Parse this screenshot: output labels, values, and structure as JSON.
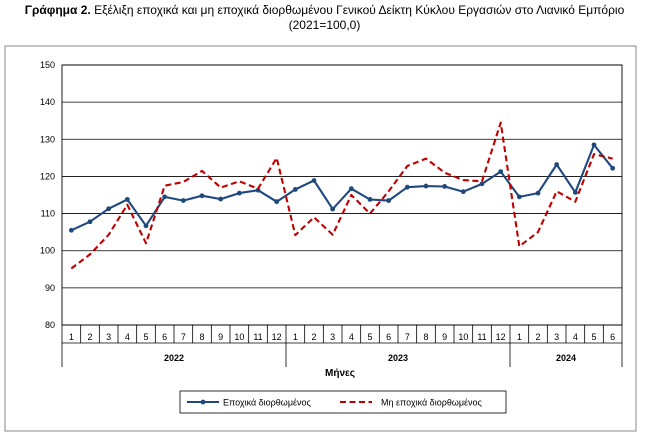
{
  "title": {
    "bold": "Γράφημα 2.",
    "line1": "Εξέλιξη εποχικά και μη εποχικά διορθωμένου Γενικού Δείκτη Κύκλου Εργασιών στο Λιανικό Εμπόριο",
    "line2": "(2021=100,0)"
  },
  "chart_data": {
    "type": "line",
    "x_tick_labels": [
      "1",
      "2",
      "3",
      "4",
      "5",
      "6",
      "7",
      "8",
      "9",
      "10",
      "11",
      "12",
      "1",
      "2",
      "3",
      "4",
      "5",
      "6",
      "7",
      "8",
      "9",
      "10",
      "11",
      "12",
      "1",
      "2",
      "3",
      "4",
      "5",
      "6"
    ],
    "years": [
      {
        "label": "2022",
        "count": 12
      },
      {
        "label": "2023",
        "count": 12
      },
      {
        "label": "2024",
        "count": 6
      }
    ],
    "xlabel": "Μήνες",
    "ylabel": "",
    "ylim": [
      80,
      150
    ],
    "yticks": [
      80,
      90,
      100,
      110,
      120,
      130,
      140,
      150
    ],
    "grid": true,
    "legend_position": "bottom",
    "series": [
      {
        "name": "Εποχικά διορθωμένος",
        "color": "#1F497D",
        "style": "solid-with-markers",
        "values": [
          105.5,
          107.8,
          111.3,
          113.8,
          106.7,
          114.5,
          113.5,
          114.8,
          113.9,
          115.5,
          116.3,
          113.2,
          116.5,
          118.9,
          111.2,
          116.7,
          113.8,
          113.5,
          117.1,
          117.4,
          117.3,
          115.9,
          118.0,
          121.3,
          114.5,
          115.5,
          123.2,
          115.7,
          128.5,
          122.2
        ]
      },
      {
        "name": "Μη εποχικά διορθωμένος",
        "color": "#C00000",
        "style": "dashed",
        "values": [
          95.2,
          99.0,
          104.3,
          112.4,
          102.0,
          117.5,
          118.5,
          121.5,
          117.0,
          118.7,
          116.7,
          125.0,
          104.2,
          109.0,
          104.3,
          115.0,
          110.0,
          116.0,
          122.8,
          124.8,
          121.0,
          119.0,
          118.7,
          134.5,
          101.2,
          105.0,
          116.0,
          113.2,
          126.0,
          124.8
        ]
      }
    ]
  }
}
